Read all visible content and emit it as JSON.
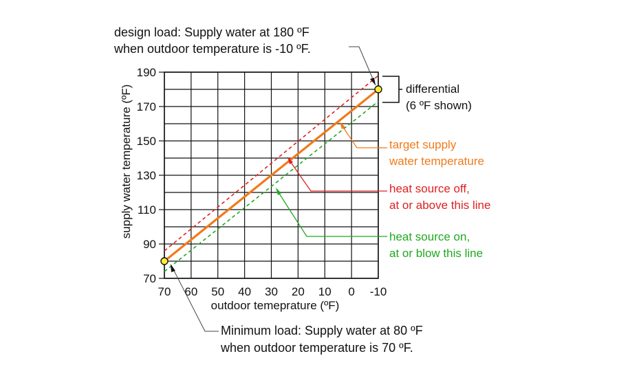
{
  "chart_data": {
    "type": "line",
    "xlabel": "outdoor temeprature (ºF)",
    "ylabel": "supply water temperature (ºF)",
    "x_ticks": [
      "70",
      "60",
      "50",
      "40",
      "30",
      "20",
      "10",
      "0",
      "-10"
    ],
    "x_tick_values": [
      70,
      60,
      50,
      40,
      30,
      20,
      10,
      0,
      -10
    ],
    "y_ticks": [
      "70",
      "90",
      "110",
      "130",
      "150",
      "170",
      "190"
    ],
    "y_tick_values": [
      70,
      90,
      110,
      130,
      150,
      170,
      190
    ],
    "xlim": [
      70,
      -10
    ],
    "ylim": [
      70,
      190
    ],
    "grid": true,
    "series": [
      {
        "name": "target supply water temperature",
        "style": "solid",
        "x": [
          70,
          -10
        ],
        "y": [
          80,
          180
        ]
      },
      {
        "name": "heat source off, at or above this line",
        "style": "dashed",
        "x": [
          70,
          -10
        ],
        "y": [
          86,
          188
        ]
      },
      {
        "name": "heat source on, at or blow this line",
        "style": "dashed",
        "x": [
          70,
          -10
        ],
        "y": [
          74,
          173
        ]
      }
    ],
    "points": [
      {
        "name": "design load",
        "x": -10,
        "y": 180
      },
      {
        "name": "minimum load",
        "x": 70,
        "y": 80
      }
    ],
    "annotations": {
      "design_line1": "design load: Supply water at 180 ºF",
      "design_line2": "when outdoor temperature is -10 ºF.",
      "min_line1": "Minimum load: Supply water at 80 ºF",
      "min_line2": "when outdoor temperature is 70 ºF.",
      "differential_line1": "differential",
      "differential_line2": "(6 ºF shown)",
      "target_line1": "target supply",
      "target_line2": "water temperature",
      "off_line1": "heat source off,",
      "off_line2": "at or above this line",
      "on_line1": "heat source on,",
      "on_line2": "at or blow this line"
    },
    "colors": {
      "target": "#f07a1a",
      "off": "#e02020",
      "on": "#21a821",
      "grid": "#111111",
      "point_fill": "#ffee33"
    }
  }
}
